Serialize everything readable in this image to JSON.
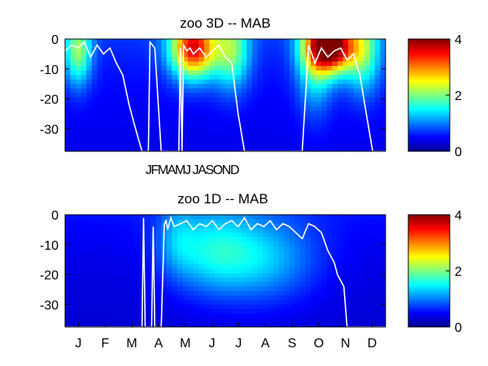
{
  "chart_data": [
    {
      "type": "heatmap",
      "title": "zoo 3D   -- MAB",
      "xlabel": "",
      "ylabel": "",
      "x_tick_labels": [
        "J",
        "F",
        "M",
        "A",
        "M",
        "J",
        "J",
        "A",
        "S",
        "O",
        "N",
        "D"
      ],
      "y_ticks": [
        0,
        -10,
        -20,
        -30
      ],
      "y_tick_labels": [
        "0",
        "-10",
        "-20",
        "-30"
      ],
      "ylim": [
        -37.5,
        0
      ],
      "colorbar": {
        "ticks": [
          0,
          2,
          4
        ],
        "tick_labels": [
          "0",
          "2",
          "4"
        ],
        "range": [
          0,
          4
        ],
        "colormap": "jet"
      },
      "hotspots": [
        {
          "t": 0.04,
          "d": -4,
          "st": 0.03,
          "sd": 8,
          "amp": 1.5
        },
        {
          "t": 0.4,
          "d": -3,
          "st": 0.05,
          "sd": 7,
          "amp": 3.0
        },
        {
          "t": 0.52,
          "d": -4,
          "st": 0.04,
          "sd": 9,
          "amp": 1.4
        },
        {
          "t": 0.83,
          "d": -2.5,
          "st": 0.05,
          "sd": 6,
          "amp": 3.6
        },
        {
          "t": 0.78,
          "d": -6,
          "st": 0.04,
          "sd": 12,
          "amp": 1.2
        },
        {
          "t": 0.93,
          "d": -4,
          "st": 0.04,
          "sd": 10,
          "amp": 1.3
        }
      ],
      "background_level": 0.7,
      "line_x": [
        0.0,
        0.02,
        0.04,
        0.06,
        0.08,
        0.1,
        0.12,
        0.14,
        0.16,
        0.18,
        0.2,
        0.22,
        0.24,
        0.26,
        0.265,
        0.28,
        0.3,
        0.32,
        0.34,
        0.355,
        0.36,
        0.365,
        0.37,
        0.38,
        0.39,
        0.4,
        0.42,
        0.44,
        0.46,
        0.48,
        0.5,
        0.52,
        0.54,
        0.56,
        0.58,
        0.6,
        0.62,
        0.64,
        0.66,
        0.7,
        0.74,
        0.76,
        0.78,
        0.8,
        0.82,
        0.84,
        0.86,
        0.88,
        0.9,
        0.92,
        0.94,
        0.96,
        0.98,
        1.0
      ],
      "line_y": [
        -4,
        -2,
        -3,
        -1,
        -6,
        -2,
        -5,
        -3,
        -8,
        -12,
        -22,
        -30,
        -37.5,
        -37.5,
        -1,
        -3,
        -37.5,
        -37.5,
        -37.5,
        -37.5,
        -3,
        -37.5,
        -2,
        -4,
        -3,
        -5,
        -3,
        -6,
        -4,
        -2,
        -6,
        -8,
        -25,
        -37.5,
        -37.5,
        -37.5,
        -37.5,
        -37.5,
        -37.5,
        -37.5,
        -37.5,
        -2,
        -8,
        -3,
        -6,
        -4,
        -3,
        -7,
        -5,
        -12,
        -25,
        -37.5,
        -37.5,
        -37.5
      ]
    },
    {
      "type": "heatmap",
      "title": "zoo 1D   -- MAB",
      "xlabel": "",
      "ylabel": "",
      "x_tick_labels": [
        "J",
        "F",
        "M",
        "A",
        "M",
        "J",
        "J",
        "A",
        "S",
        "O",
        "N",
        "D"
      ],
      "y_ticks": [
        0,
        -10,
        -20,
        -30
      ],
      "y_tick_labels": [
        "0",
        "-10",
        "-20",
        "-30"
      ],
      "ylim": [
        -37.5,
        0
      ],
      "colorbar": {
        "ticks": [
          0,
          2,
          4
        ],
        "tick_labels": [
          "0",
          "2",
          "4"
        ],
        "range": [
          0,
          4
        ],
        "colormap": "jet"
      },
      "hotspots": [
        {
          "t": 0.45,
          "d": -12,
          "st": 0.1,
          "sd": 10,
          "amp": 0.9
        },
        {
          "t": 0.62,
          "d": -15,
          "st": 0.12,
          "sd": 10,
          "amp": 0.8
        },
        {
          "t": 0.35,
          "d": -8,
          "st": 0.04,
          "sd": 8,
          "amp": 0.4
        }
      ],
      "background_level": 0.55,
      "line_x": [
        0.0,
        0.24,
        0.245,
        0.25,
        0.27,
        0.275,
        0.28,
        0.3,
        0.31,
        0.315,
        0.32,
        0.33,
        0.34,
        0.36,
        0.38,
        0.4,
        0.42,
        0.44,
        0.46,
        0.48,
        0.5,
        0.52,
        0.54,
        0.56,
        0.58,
        0.6,
        0.62,
        0.64,
        0.66,
        0.68,
        0.7,
        0.72,
        0.74,
        0.76,
        0.78,
        0.8,
        0.82,
        0.84,
        0.85,
        0.86,
        0.87,
        0.88,
        0.89,
        0.9,
        1.0
      ],
      "line_y": [
        -37.5,
        -37.5,
        -1,
        -37.5,
        -37.5,
        -4,
        -37.5,
        -37.5,
        -3,
        -2,
        -5,
        -1,
        -4,
        -3,
        -2,
        -5,
        -3,
        -4,
        -2,
        -5,
        -3,
        -2,
        -4,
        -1,
        -5,
        -3,
        -4,
        -2,
        -5,
        -3,
        -4,
        -6,
        -8,
        -3,
        -4,
        -6,
        -12,
        -16,
        -20,
        -22,
        -24,
        -37.5,
        -37.5,
        -37.5,
        -37.5
      ]
    }
  ],
  "top_month_strip": "JFMAMJ JASOND"
}
